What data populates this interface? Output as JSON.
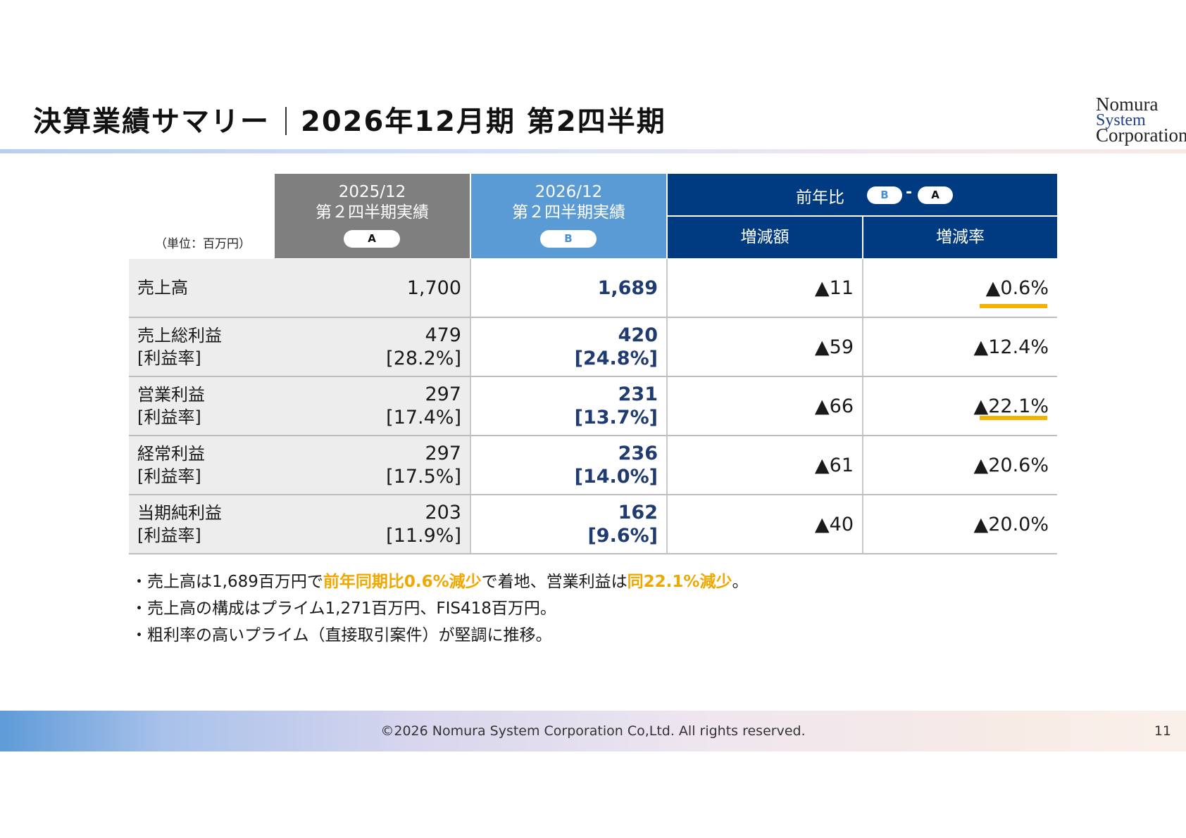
{
  "header": {
    "title_main": "決算業績サマリー",
    "title_period": "2026年12月期 第2四半期",
    "logo": [
      "Nomura",
      "System",
      "Corporation"
    ]
  },
  "table": {
    "unit_label": "（単位：百万円）",
    "col_a": {
      "line1": "2025/12",
      "line2": "第２四半期実績",
      "badge": "A"
    },
    "col_b": {
      "line1": "2026/12",
      "line2": "第２四半期実績",
      "badge": "B"
    },
    "yoy": {
      "label": "前年比",
      "badge_b": "B",
      "dash": "-",
      "badge_a": "A",
      "sub_diff": "増減額",
      "sub_rate": "増減率"
    },
    "rows": [
      {
        "label1": "売上高",
        "label2": "",
        "a1": "1,700",
        "a2": "",
        "b1": "1,689",
        "b2": "",
        "diff": "▲11",
        "rate": "▲0.6%",
        "underline": true
      },
      {
        "label1": "売上総利益",
        "label2": "[利益率]",
        "a1": "479",
        "a2": "[28.2%]",
        "b1": "420",
        "b2": "[24.8%]",
        "diff": "▲59",
        "rate": "▲12.4%",
        "underline": false
      },
      {
        "label1": "営業利益",
        "label2": "[利益率]",
        "a1": "297",
        "a2": "[17.4%]",
        "b1": "231",
        "b2": "[13.7%]",
        "diff": "▲66",
        "rate": "▲22.1%",
        "underline": true
      },
      {
        "label1": "経常利益",
        "label2": "[利益率]",
        "a1": "297",
        "a2": "[17.5%]",
        "b1": "236",
        "b2": "[14.0%]",
        "diff": "▲61",
        "rate": "▲20.6%",
        "underline": false
      },
      {
        "label1": "当期純利益",
        "label2": "[利益率]",
        "a1": "203",
        "a2": "[11.9%]",
        "b1": "162",
        "b2": "[9.6%]",
        "diff": "▲40",
        "rate": "▲20.0%",
        "underline": false
      }
    ]
  },
  "notes": {
    "n1_a": "・売上高は1,689百万円で",
    "n1_hl1": "前年同期比0.6%減少",
    "n1_b": "で着地、営業利益は",
    "n1_hl2": "同22.1%減少",
    "n1_c": "。",
    "n2": "・売上高の構成はプライム1,271百万円、FIS418百万円。",
    "n3": "・粗利率の高いプライム（直接取引案件）が堅調に推移。"
  },
  "footer": {
    "copyright": "©2026 Nomura System Corporation Co,Ltd. All rights reserved.",
    "page": "11"
  },
  "colors": {
    "col_a_bg": "#7f7f7f",
    "col_b_bg": "#5b9bd5",
    "yoy_bg": "#003a80",
    "b_value": "#1f3b70",
    "highlight": "#f0a800",
    "underline": "#f5b100"
  }
}
